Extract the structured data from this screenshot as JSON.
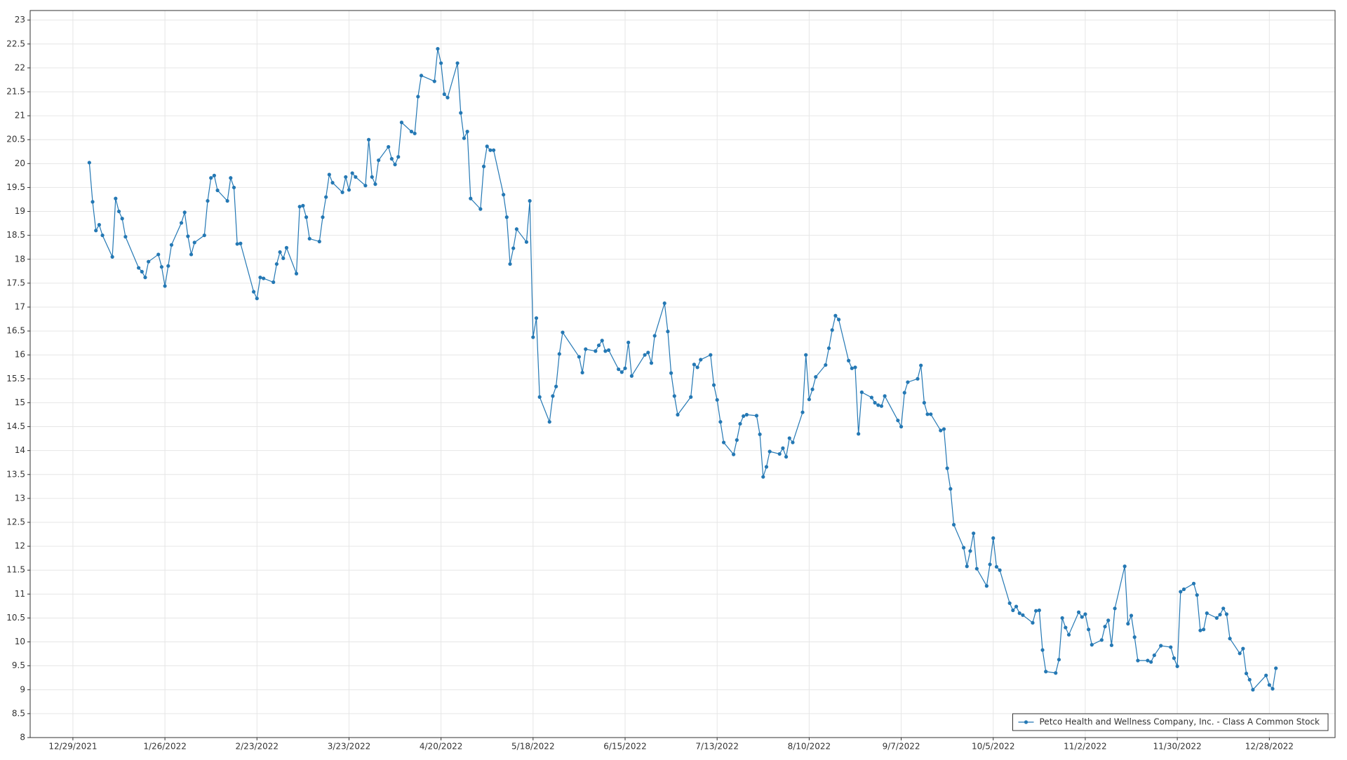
{
  "chart_data": {
    "type": "line",
    "grid": true,
    "legend": "lower right",
    "xlim": [
      "12/16/2021",
      "1/17/2023"
    ],
    "xticks": [
      "12/29/2021",
      "1/26/2022",
      "2/23/2022",
      "3/23/2022",
      "4/20/2022",
      "5/18/2022",
      "6/15/2022",
      "7/13/2022",
      "8/10/2022",
      "9/7/2022",
      "10/5/2022",
      "11/2/2022",
      "11/30/2022",
      "12/28/2022"
    ],
    "ylim": [
      8,
      23.2
    ],
    "yticks": [
      8,
      8.5,
      9,
      9.5,
      10,
      10.5,
      11,
      11.5,
      12,
      12.5,
      13,
      13.5,
      14,
      14.5,
      15,
      15.5,
      16,
      16.5,
      17,
      17.5,
      18,
      18.5,
      19,
      19.5,
      20,
      20.5,
      21,
      21.5,
      22,
      22.5,
      23
    ],
    "x": [
      "1/3/2022",
      "1/4/2022",
      "1/5/2022",
      "1/6/2022",
      "1/7/2022",
      "1/10/2022",
      "1/11/2022",
      "1/12/2022",
      "1/13/2022",
      "1/14/2022",
      "1/18/2022",
      "1/19/2022",
      "1/20/2022",
      "1/21/2022",
      "1/24/2022",
      "1/25/2022",
      "1/26/2022",
      "1/27/2022",
      "1/28/2022",
      "1/31/2022",
      "2/1/2022",
      "2/2/2022",
      "2/3/2022",
      "2/4/2022",
      "2/7/2022",
      "2/8/2022",
      "2/9/2022",
      "2/10/2022",
      "2/11/2022",
      "2/14/2022",
      "2/15/2022",
      "2/16/2022",
      "2/17/2022",
      "2/18/2022",
      "2/22/2022",
      "2/23/2022",
      "2/24/2022",
      "2/25/2022",
      "2/28/2022",
      "3/1/2022",
      "3/2/2022",
      "3/3/2022",
      "3/4/2022",
      "3/7/2022",
      "3/8/2022",
      "3/9/2022",
      "3/10/2022",
      "3/11/2022",
      "3/14/2022",
      "3/15/2022",
      "3/16/2022",
      "3/17/2022",
      "3/18/2022",
      "3/21/2022",
      "3/22/2022",
      "3/23/2022",
      "3/24/2022",
      "3/25/2022",
      "3/28/2022",
      "3/29/2022",
      "3/30/2022",
      "3/31/2022",
      "4/1/2022",
      "4/4/2022",
      "4/5/2022",
      "4/6/2022",
      "4/7/2022",
      "4/8/2022",
      "4/11/2022",
      "4/12/2022",
      "4/13/2022",
      "4/14/2022",
      "4/18/2022",
      "4/19/2022",
      "4/20/2022",
      "4/21/2022",
      "4/22/2022",
      "4/25/2022",
      "4/26/2022",
      "4/27/2022",
      "4/28/2022",
      "4/29/2022",
      "5/2/2022",
      "5/3/2022",
      "5/4/2022",
      "5/5/2022",
      "5/6/2022",
      "5/9/2022",
      "5/10/2022",
      "5/11/2022",
      "5/12/2022",
      "5/13/2022",
      "5/16/2022",
      "5/17/2022",
      "5/18/2022",
      "5/19/2022",
      "5/20/2022",
      "5/23/2022",
      "5/24/2022",
      "5/25/2022",
      "5/26/2022",
      "5/27/2022",
      "6/1/2022",
      "6/2/2022",
      "6/3/2022",
      "6/6/2022",
      "6/7/2022",
      "6/8/2022",
      "6/9/2022",
      "6/10/2022",
      "6/13/2022",
      "6/14/2022",
      "6/15/2022",
      "6/16/2022",
      "6/17/2022",
      "6/21/2022",
      "6/22/2022",
      "6/23/2022",
      "6/24/2022",
      "6/27/2022",
      "6/28/2022",
      "6/29/2022",
      "6/30/2022",
      "7/1/2022",
      "7/5/2022",
      "7/6/2022",
      "7/7/2022",
      "7/8/2022",
      "7/11/2022",
      "7/12/2022",
      "7/13/2022",
      "7/14/2022",
      "7/15/2022",
      "7/18/2022",
      "7/19/2022",
      "7/20/2022",
      "7/21/2022",
      "7/22/2022",
      "7/25/2022",
      "7/26/2022",
      "7/27/2022",
      "7/28/2022",
      "7/29/2022",
      "8/1/2022",
      "8/2/2022",
      "8/3/2022",
      "8/4/2022",
      "8/5/2022",
      "8/8/2022",
      "8/9/2022",
      "8/10/2022",
      "8/11/2022",
      "8/12/2022",
      "8/15/2022",
      "8/16/2022",
      "8/17/2022",
      "8/18/2022",
      "8/19/2022",
      "8/22/2022",
      "8/23/2022",
      "8/24/2022",
      "8/25/2022",
      "8/26/2022",
      "8/29/2022",
      "8/30/2022",
      "8/31/2022",
      "9/1/2022",
      "9/2/2022",
      "9/6/2022",
      "9/7/2022",
      "9/8/2022",
      "9/9/2022",
      "9/12/2022",
      "9/13/2022",
      "9/14/2022",
      "9/15/2022",
      "9/16/2022",
      "9/19/2022",
      "9/20/2022",
      "9/21/2022",
      "9/22/2022",
      "9/23/2022",
      "9/26/2022",
      "9/27/2022",
      "9/28/2022",
      "9/29/2022",
      "9/30/2022",
      "10/3/2022",
      "10/4/2022",
      "10/5/2022",
      "10/6/2022",
      "10/7/2022",
      "10/10/2022",
      "10/11/2022",
      "10/12/2022",
      "10/13/2022",
      "10/14/2022",
      "10/17/2022",
      "10/18/2022",
      "10/19/2022",
      "10/20/2022",
      "10/21/2022",
      "10/24/2022",
      "10/25/2022",
      "10/26/2022",
      "10/27/2022",
      "10/28/2022",
      "10/31/2022",
      "11/1/2022",
      "11/2/2022",
      "11/3/2022",
      "11/4/2022",
      "11/7/2022",
      "11/8/2022",
      "11/9/2022",
      "11/10/2022",
      "11/11/2022",
      "11/14/2022",
      "11/15/2022",
      "11/16/2022",
      "11/17/2022",
      "11/18/2022",
      "11/21/2022",
      "11/22/2022",
      "11/23/2022",
      "11/25/2022",
      "11/28/2022",
      "11/29/2022",
      "11/30/2022",
      "12/1/2022",
      "12/2/2022",
      "12/5/2022",
      "12/6/2022",
      "12/7/2022",
      "12/8/2022",
      "12/9/2022",
      "12/12/2022",
      "12/13/2022",
      "12/14/2022",
      "12/15/2022",
      "12/16/2022",
      "12/19/2022",
      "12/20/2022",
      "12/21/2022",
      "12/22/2022",
      "12/23/2022",
      "12/27/2022",
      "12/28/2022",
      "12/29/2022",
      "12/30/2022"
    ],
    "series": [
      {
        "name": "Petco Health and Wellness Company, Inc. - Class A Common Stock",
        "color": "#2478b4",
        "values": [
          20.02,
          19.2,
          18.6,
          18.72,
          18.5,
          18.05,
          19.27,
          19.0,
          18.85,
          18.47,
          17.82,
          17.74,
          17.62,
          17.95,
          18.1,
          17.84,
          17.44,
          17.86,
          18.3,
          18.76,
          18.98,
          18.48,
          18.1,
          18.35,
          18.5,
          19.22,
          19.7,
          19.75,
          19.44,
          19.22,
          19.7,
          19.5,
          18.32,
          18.33,
          17.32,
          17.18,
          17.62,
          17.6,
          17.52,
          17.9,
          18.15,
          18.02,
          18.24,
          17.7,
          19.1,
          19.12,
          18.88,
          18.43,
          18.37,
          18.88,
          19.3,
          19.77,
          19.6,
          19.4,
          19.72,
          19.45,
          19.8,
          19.72,
          19.54,
          20.5,
          19.72,
          19.57,
          20.07,
          20.35,
          20.1,
          19.98,
          20.14,
          20.86,
          20.67,
          20.63,
          21.4,
          21.84,
          21.72,
          22.4,
          22.1,
          21.45,
          21.38,
          22.1,
          21.06,
          20.53,
          20.67,
          19.27,
          19.05,
          19.94,
          20.36,
          20.28,
          20.28,
          19.35,
          18.88,
          17.9,
          18.23,
          18.63,
          18.36,
          19.22,
          16.37,
          16.77,
          15.12,
          14.6,
          15.14,
          15.34,
          16.02,
          16.47,
          15.96,
          15.63,
          16.12,
          16.08,
          16.2,
          16.3,
          16.08,
          16.1,
          15.7,
          15.64,
          15.72,
          16.26,
          15.56,
          16.0,
          16.05,
          15.83,
          16.4,
          17.08,
          16.49,
          15.62,
          15.14,
          14.75,
          15.12,
          15.8,
          15.74,
          15.9,
          16.0,
          15.37,
          15.06,
          14.6,
          14.17,
          13.92,
          14.22,
          14.56,
          14.72,
          14.75,
          14.73,
          14.34,
          13.45,
          13.66,
          13.98,
          13.93,
          14.05,
          13.87,
          14.26,
          14.17,
          14.8,
          16.0,
          15.07,
          15.28,
          15.54,
          15.79,
          16.14,
          16.52,
          16.82,
          16.74,
          15.88,
          15.72,
          15.74,
          14.35,
          15.22,
          15.11,
          15.0,
          14.95,
          14.93,
          15.14,
          14.63,
          14.5,
          15.21,
          15.43,
          15.5,
          15.78,
          15.0,
          14.76,
          14.76,
          14.42,
          14.45,
          13.63,
          13.2,
          12.45,
          11.97,
          11.58,
          11.9,
          12.27,
          11.53,
          11.17,
          11.62,
          12.17,
          11.57,
          11.5,
          10.81,
          10.66,
          10.74,
          10.6,
          10.56,
          10.4,
          10.65,
          10.66,
          9.83,
          9.38,
          9.35,
          9.63,
          10.5,
          10.3,
          10.15,
          10.62,
          10.52,
          10.58,
          10.26,
          9.94,
          10.04,
          10.32,
          10.45,
          9.93,
          10.7,
          11.58,
          10.38,
          10.55,
          10.1,
          9.61,
          9.61,
          9.58,
          9.72,
          9.92,
          9.89,
          9.66,
          9.49,
          11.05,
          11.1,
          11.22,
          10.98,
          10.24,
          10.26,
          10.6,
          10.5,
          10.57,
          10.7,
          10.58,
          10.07,
          9.76,
          9.86,
          9.34,
          9.21,
          9.0,
          9.3,
          9.1,
          9.02,
          9.45
        ]
      }
    ]
  }
}
